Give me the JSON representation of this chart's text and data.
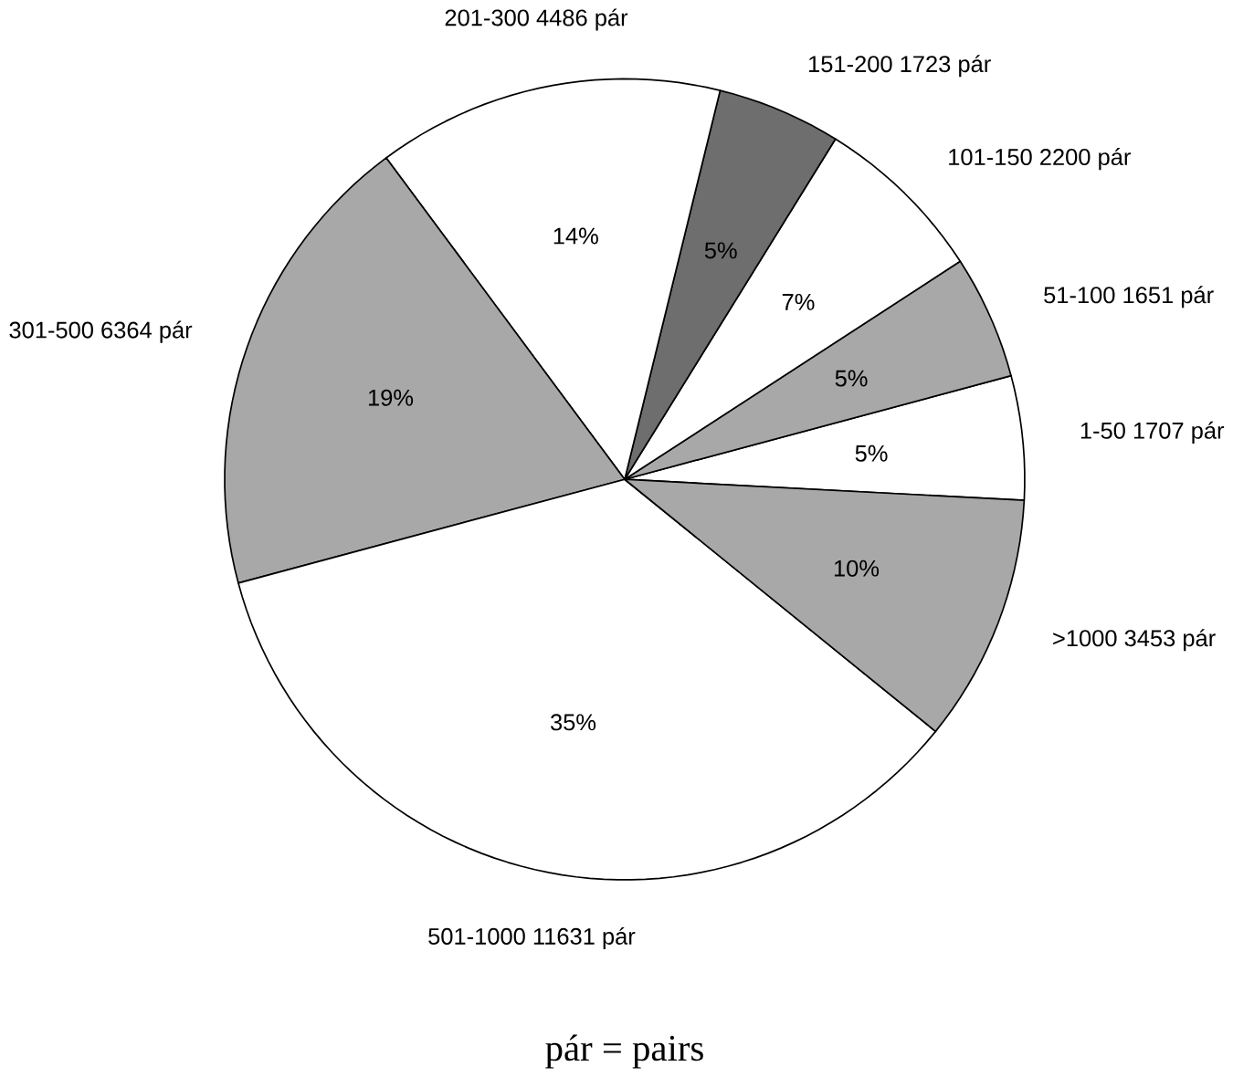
{
  "chart_data": {
    "type": "pie",
    "categories": [
      "1-50 1707 pár",
      "51-100 1651 pár",
      "101-150 2200 pár",
      "151-200 1723 pár",
      "201-300 4486 pár",
      "301-500 6364 pár",
      "501-1000 11631 pár",
      ">1000 3453 pár"
    ],
    "values": [
      5,
      5,
      7,
      5,
      14,
      19,
      35,
      10
    ],
    "value_labels": [
      "5%",
      "5%",
      "7%",
      "5%",
      "14%",
      "19%",
      "35%",
      "10%"
    ],
    "colors": [
      "#ffffff",
      "#a8a8a8",
      "#ffffff",
      "#6e6e6e",
      "#ffffff",
      "#a8a8a8",
      "#ffffff",
      "#a8a8a8"
    ],
    "annotations": [
      "pár = pairs"
    ]
  }
}
